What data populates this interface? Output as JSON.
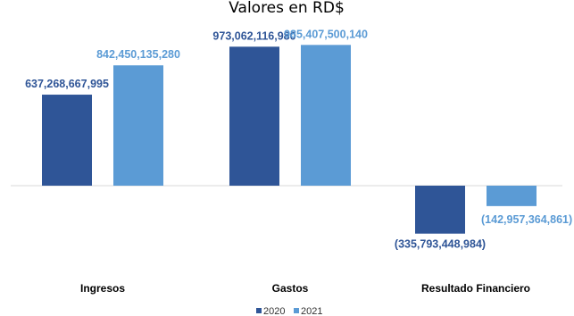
{
  "chart_data": {
    "type": "bar",
    "title": "Valores en RD$",
    "categories": [
      "Ingresos",
      "Gastos",
      "Resultado Financiero"
    ],
    "series": [
      {
        "name": "2020",
        "color": "#2f5597",
        "values": [
          637268667995,
          973062116980,
          -335793448984
        ],
        "labels": [
          "637,268,667,995",
          "973,062,116,980",
          "(335,793,448,984)"
        ]
      },
      {
        "name": "2021",
        "color": "#5b9bd5",
        "values": [
          842450135280,
          985407500140,
          -142957364861
        ],
        "labels": [
          "842,450,135,280",
          "985,407,500,140",
          "(142,957,364,861)"
        ]
      }
    ],
    "xlabel": "",
    "ylabel": "",
    "ylim": [
      -400000000000,
      1000000000000
    ],
    "grid": false,
    "legend_position": "bottom"
  }
}
